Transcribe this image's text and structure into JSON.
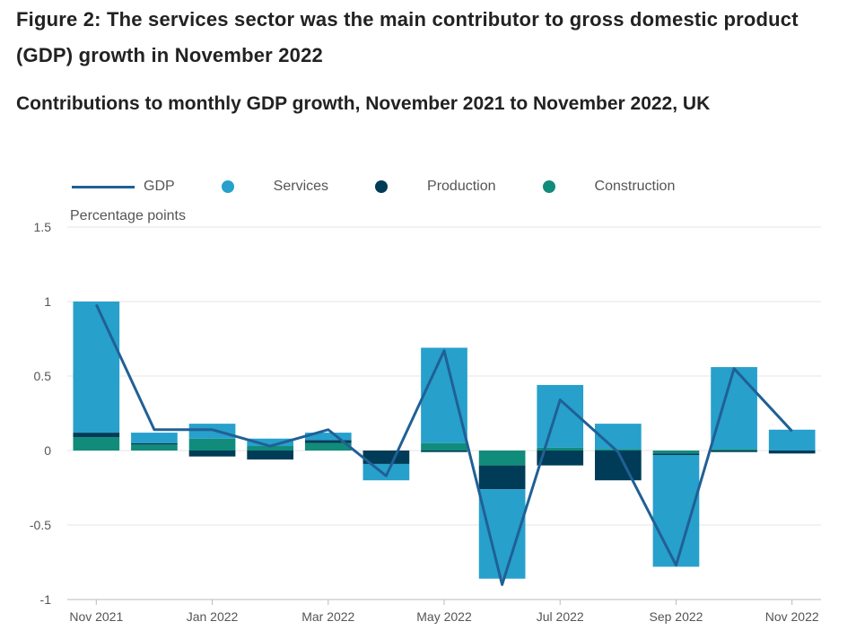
{
  "figure": {
    "title": "Figure 2: The services sector was the main contributor to gross domestic product (GDP) growth in November 2022",
    "subtitle": "Contributions to monthly GDP growth, November 2021 to November 2022, UK"
  },
  "colors": {
    "gdp": "#206095",
    "services": "#27a0cc",
    "production": "#003c57",
    "construction": "#118c7b",
    "grid": "#e6e6e6",
    "tick_text": "#555555"
  },
  "chart_data": {
    "type": "bar",
    "stacked": true,
    "title": "Contributions to monthly GDP growth, November 2021 to November 2022, UK",
    "ylabel": "Percentage points",
    "xlabel": "",
    "ylim": [
      -1,
      1.5
    ],
    "yticks": [
      -1,
      -0.5,
      0,
      0.5,
      1,
      1.5
    ],
    "ytick_labels": [
      "-1",
      "-0.5",
      "0",
      "0.5",
      "1",
      "1.5"
    ],
    "grid": true,
    "legend_position": "top",
    "categories": [
      "Nov 2021",
      "Dec 2021",
      "Jan 2022",
      "Feb 2022",
      "Mar 2022",
      "Apr 2022",
      "May 2022",
      "Jun 2022",
      "Jul 2022",
      "Aug 2022",
      "Sep 2022",
      "Oct 2022",
      "Nov 2022"
    ],
    "xtick_labels": [
      "Nov 2021",
      "",
      "Jan 2022",
      "",
      "Mar 2022",
      "",
      "May 2022",
      "",
      "Jul 2022",
      "",
      "Sep 2022",
      "",
      "Nov 2022"
    ],
    "series": [
      {
        "name": "Construction",
        "kind": "bar",
        "values": [
          0.09,
          0.04,
          0.08,
          0.03,
          0.05,
          0.0,
          0.05,
          -0.1,
          0.02,
          0.01,
          -0.02,
          0.01,
          0.0
        ]
      },
      {
        "name": "Production",
        "kind": "bar",
        "values": [
          0.03,
          0.01,
          -0.04,
          -0.06,
          0.02,
          -0.09,
          -0.01,
          -0.16,
          -0.1,
          -0.2,
          -0.01,
          -0.01,
          -0.02
        ]
      },
      {
        "name": "Services",
        "kind": "bar",
        "values": [
          0.88,
          0.07,
          0.1,
          0.05,
          0.05,
          -0.11,
          0.64,
          -0.6,
          0.42,
          0.17,
          -0.75,
          0.55,
          0.14
        ]
      },
      {
        "name": "GDP",
        "kind": "line",
        "values": [
          0.98,
          0.14,
          0.14,
          0.03,
          0.14,
          -0.17,
          0.67,
          -0.9,
          0.34,
          -0.01,
          -0.77,
          0.55,
          0.13
        ]
      }
    ]
  }
}
